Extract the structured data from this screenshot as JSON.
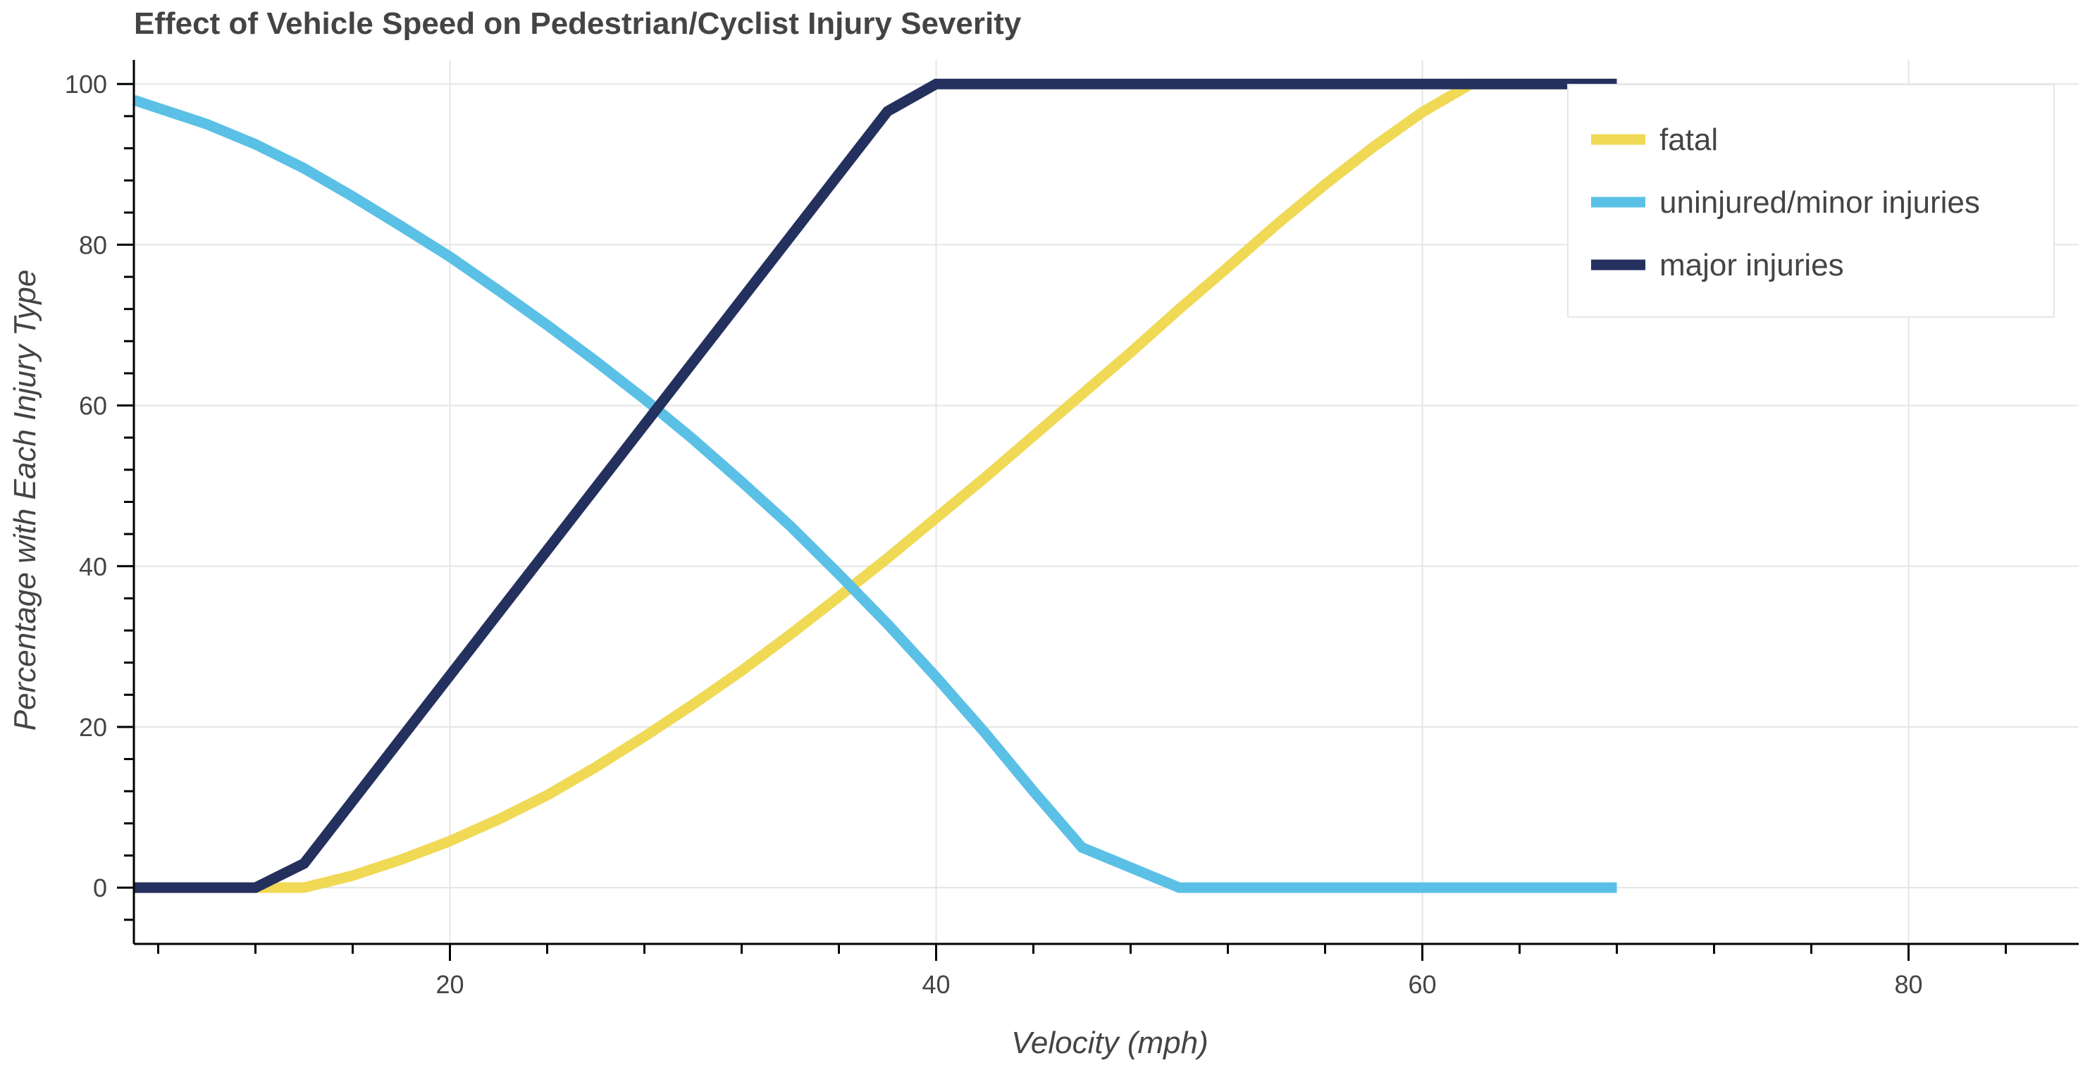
{
  "chart_data": {
    "type": "line",
    "title": "Effect of Vehicle Speed on Pedestrian/Cyclist Injury Severity",
    "xlabel": "Velocity (mph)",
    "ylabel": "Percentage with Each Injury Type",
    "xlim": [
      7,
      87
    ],
    "ylim": [
      -7,
      103
    ],
    "x_major_ticks": [
      20,
      40,
      60,
      80
    ],
    "y_major_ticks": [
      0,
      20,
      40,
      60,
      80,
      100
    ],
    "grid": true,
    "legend_position": "top-right",
    "x": [
      7,
      10,
      12,
      14,
      16,
      18,
      20,
      22,
      24,
      26,
      28,
      30,
      32,
      34,
      36,
      38,
      40,
      42,
      44,
      46,
      48,
      50,
      52,
      54,
      56,
      58,
      60,
      62,
      64,
      66,
      68
    ],
    "series": [
      {
        "name": "fatal",
        "color": "#f0d955",
        "values": [
          0,
          0,
          0,
          0,
          1.5,
          3.5,
          5.8,
          8.5,
          11.5,
          15,
          18.8,
          22.8,
          27,
          31.5,
          36.2,
          41,
          46,
          51,
          56.2,
          61.4,
          66.6,
          72,
          77.2,
          82.5,
          87.5,
          92.2,
          96.5,
          100,
          100,
          100,
          100
        ]
      },
      {
        "name": "uninjured/minor injuries",
        "color": "#5bc0e6",
        "values": [
          98,
          95,
          92.5,
          89.5,
          86,
          82.3,
          78.5,
          74.3,
          70,
          65.5,
          60.8,
          55.8,
          50.5,
          45,
          39,
          32.8,
          26.2,
          19.3,
          12,
          5,
          2.5,
          0,
          0,
          0,
          0,
          0,
          0,
          0,
          0,
          0,
          0
        ]
      },
      {
        "name": "major injuries",
        "color": "#24305e",
        "values": [
          0,
          0,
          0,
          3,
          10.8,
          18.6,
          26.4,
          34.2,
          42,
          49.8,
          57.6,
          65.4,
          73.2,
          81,
          88.8,
          96.6,
          100,
          100,
          100,
          100,
          100,
          100,
          100,
          100,
          100,
          100,
          100,
          100,
          100,
          100,
          100
        ]
      }
    ]
  }
}
